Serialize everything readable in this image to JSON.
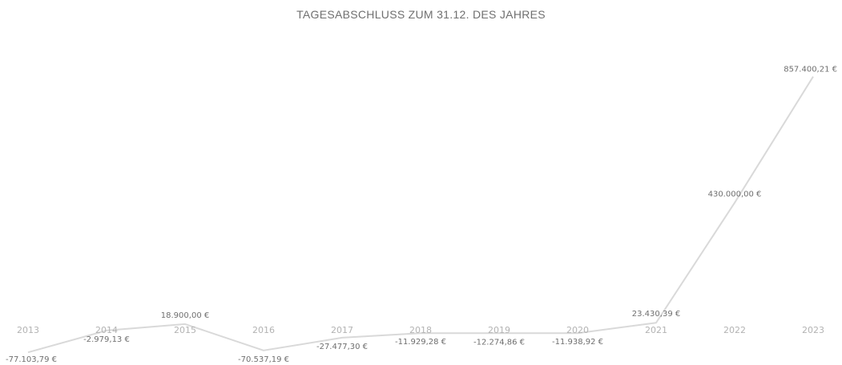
{
  "chart_data": {
    "type": "line",
    "title": "TAGESABSCHLUSS ZUM 31.12. DES JAHRES",
    "xlabel": "",
    "ylabel": "",
    "categories": [
      "2013",
      "2014",
      "2015",
      "2016",
      "2017",
      "2018",
      "2019",
      "2020",
      "2021",
      "2022",
      "2023"
    ],
    "series": [
      {
        "values": [
          -77103.79,
          -2979.13,
          18900.0,
          -70537.19,
          -27477.3,
          -11929.28,
          -12274.86,
          -11938.92,
          23430.39,
          430000.0,
          857400.21
        ],
        "labels": [
          "-77.103,79 €",
          "-2.979,13 €",
          "18.900,00 €",
          "-70.537,19 €",
          "-27.477,30 €",
          "-11.929,28 €",
          "-12.274,86 €",
          "-11.938,92 €",
          "23.430,39 €",
          "430.000,00 €",
          "857.400,21 €"
        ]
      }
    ],
    "ylim": [
      -90000,
      900000
    ],
    "grid": false,
    "legend": "none",
    "line_color": "#d9d9d9",
    "label_color": "#6f6f6f",
    "tick_color": "#b3b3b3"
  }
}
